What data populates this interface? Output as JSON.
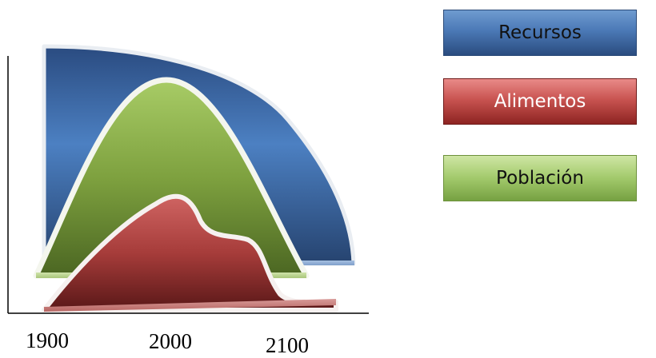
{
  "legend": {
    "recursos": "Recursos",
    "alimentos": "Alimentos",
    "poblacion": "Población"
  },
  "axis": {
    "years": [
      "1900",
      "2000",
      "2100"
    ]
  },
  "colors": {
    "recursos_top": "#2a4b80",
    "recursos_mid": "#4c80c2",
    "poblacion_top": "#a8cc66",
    "poblacion_bottom": "#4b6622",
    "alimentos_top": "#c95a58",
    "alimentos_bottom": "#5a1818"
  }
}
